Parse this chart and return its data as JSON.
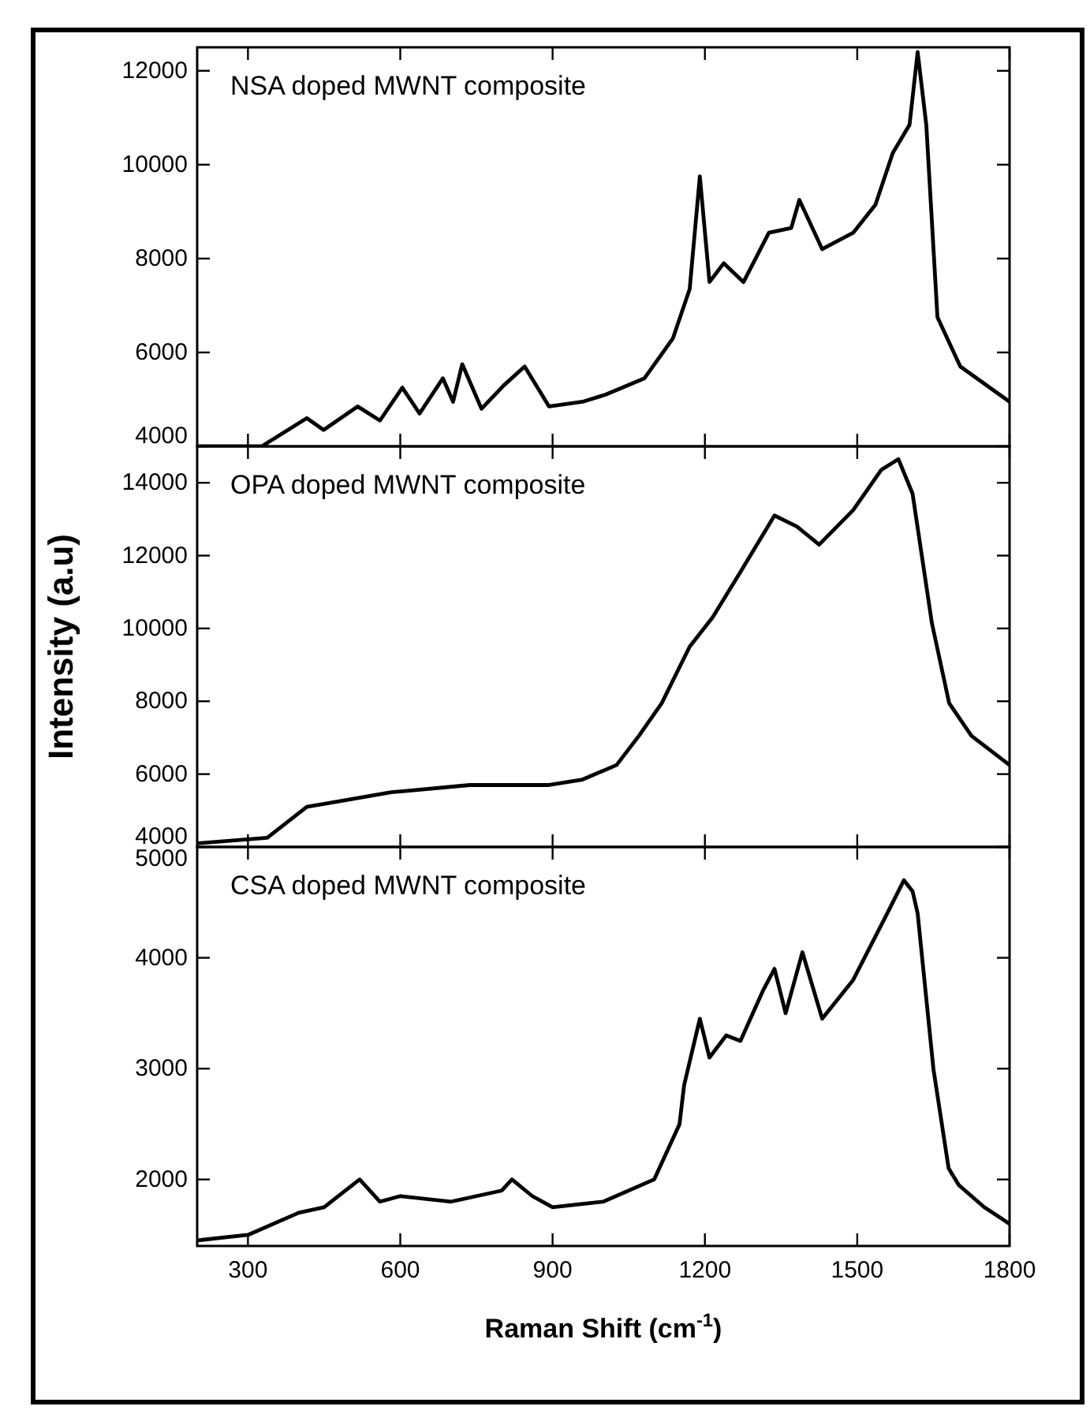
{
  "chart_data": [
    {
      "type": "line",
      "title": "NSA doped MWNT composite",
      "xlim": [
        200,
        1800
      ],
      "xticks": [
        300,
        600,
        900,
        1200,
        1500,
        1800
      ],
      "ylim": [
        4000,
        12500
      ],
      "yticks": [
        4000,
        6000,
        8000,
        10000,
        12000
      ],
      "tick_labels": "y",
      "grid": false,
      "marker": "none",
      "line_style": "solid",
      "series": [
        {
          "color": "#000000",
          "x": [
            200,
            327,
            416,
            449,
            516,
            560,
            604,
            638,
            684,
            704,
            722,
            760,
            804,
            845,
            893,
            959,
            1004,
            1081,
            1137,
            1170,
            1190,
            1209,
            1237,
            1276,
            1326,
            1370,
            1386,
            1431,
            1492,
            1536,
            1570,
            1603,
            1619,
            1636,
            1658,
            1703,
            1800
          ],
          "values": [
            4000,
            4000,
            4600,
            4350,
            4850,
            4550,
            5250,
            4700,
            5450,
            4950,
            5750,
            4800,
            5300,
            5700,
            4850,
            4950,
            5100,
            5450,
            6300,
            7350,
            9750,
            7500,
            7900,
            7500,
            8550,
            8650,
            9250,
            8200,
            8550,
            9150,
            10250,
            10850,
            12400,
            10850,
            6750,
            5700,
            4950
          ]
        }
      ]
    },
    {
      "type": "line",
      "title": "OPA doped MWNT composite",
      "xlim": [
        200,
        1800
      ],
      "xticks": [
        300,
        600,
        900,
        1200,
        1500,
        1800
      ],
      "ylim": [
        4000,
        15000
      ],
      "yticks": [
        4000,
        6000,
        8000,
        10000,
        12000,
        14000
      ],
      "tick_labels": "y",
      "ylabel": "Intensity (a.u)",
      "grid": false,
      "marker": "none",
      "line_style": "solid",
      "series": [
        {
          "color": "#000000",
          "x": [
            200,
            338,
            416,
            582,
            737,
            893,
            959,
            1026,
            1070,
            1115,
            1170,
            1215,
            1270,
            1337,
            1381,
            1425,
            1492,
            1547,
            1581,
            1609,
            1647,
            1681,
            1725,
            1800
          ],
          "values": [
            4100,
            4250,
            5100,
            5500,
            5700,
            5700,
            5850,
            6250,
            7050,
            7950,
            9500,
            10300,
            11550,
            13100,
            12800,
            12300,
            13250,
            14350,
            14650,
            13700,
            10150,
            7950,
            7050,
            6250
          ]
        }
      ]
    },
    {
      "type": "line",
      "title": "CSA doped MWNT composite",
      "xlabel": "Raman Shift (cm$^{-1}$)",
      "xlim": [
        200,
        1800
      ],
      "xticks": [
        300,
        600,
        900,
        1200,
        1500,
        1800
      ],
      "ylim": [
        1400,
        5000
      ],
      "yticks": [
        2000,
        3000,
        4000,
        5000
      ],
      "grid": false,
      "marker": "none",
      "line_style": "solid",
      "series": [
        {
          "color": "#000000",
          "x": [
            200,
            300,
            400,
            450,
            520,
            560,
            600,
            700,
            800,
            820,
            860,
            900,
            1000,
            1100,
            1150,
            1159,
            1190,
            1209,
            1242,
            1270,
            1314,
            1337,
            1359,
            1392,
            1431,
            1492,
            1559,
            1592,
            1609,
            1619,
            1650,
            1680,
            1700,
            1750,
            1800
          ],
          "values": [
            1450,
            1500,
            1700,
            1750,
            2000,
            1800,
            1850,
            1800,
            1900,
            2000,
            1850,
            1750,
            1800,
            2000,
            2500,
            2850,
            3450,
            3100,
            3300,
            3250,
            3700,
            3900,
            3500,
            4050,
            3450,
            3800,
            4400,
            4700,
            4600,
            4400,
            3000,
            2100,
            1950,
            1750,
            1600
          ]
        }
      ]
    }
  ]
}
